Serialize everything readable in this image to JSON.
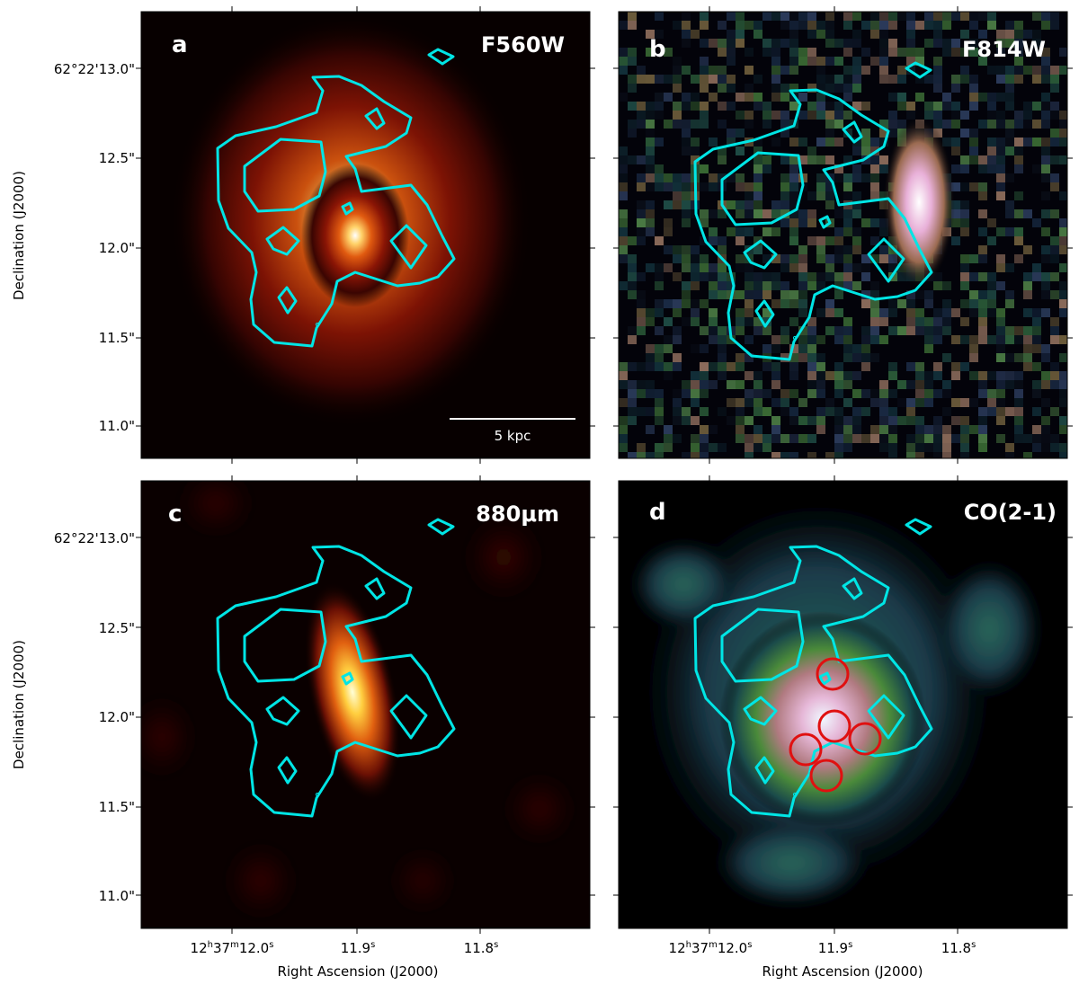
{
  "figure": {
    "panels": [
      {
        "id": "a",
        "letter": "a",
        "band": "F560W",
        "colormap": "hot"
      },
      {
        "id": "b",
        "letter": "b",
        "band": "F814W",
        "colormap": "cubehelix"
      },
      {
        "id": "c",
        "letter": "c",
        "band": "880μm",
        "colormap": "hot"
      },
      {
        "id": "d",
        "letter": "d",
        "band": "CO(2-1)",
        "colormap": "cubehelix"
      }
    ],
    "dec_tick_labels": [
      "62°22'13.0\"",
      "12.5\"",
      "12.0\"",
      "11.5\"",
      "11.0\""
    ],
    "ra_tick_labels": {
      "t1": {
        "h": "12",
        "m": "37",
        "s": "12.0",
        "hs": "h",
        "ms": "m",
        "ss": "s"
      },
      "t2": {
        "s": "11.9",
        "ss": "s"
      },
      "t3": {
        "s": "11.8",
        "ss": "s"
      }
    },
    "xlabel": "Right Ascension (J2000)",
    "ylabel": "Declination (J2000)",
    "scalebar_label": "5 kpc",
    "contour_color": "#00e5e5",
    "circle_color": "#e01010"
  }
}
